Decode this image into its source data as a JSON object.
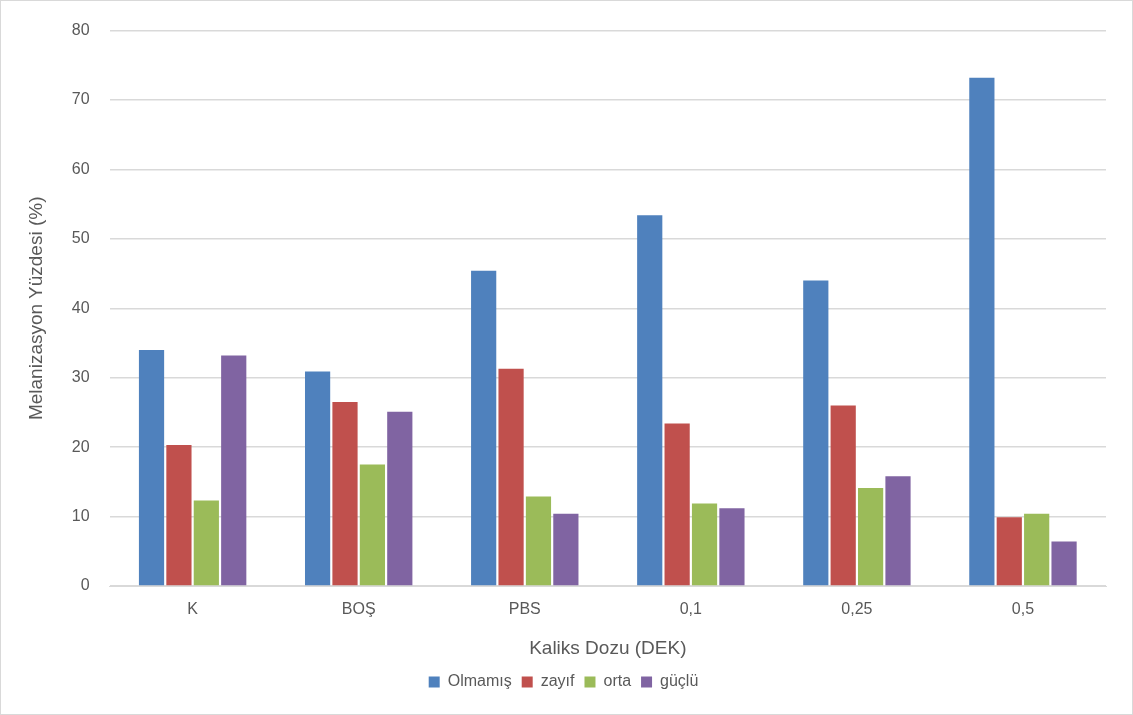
{
  "chart_data": {
    "type": "bar",
    "xlabel": "Kaliks Dozu (DEK)",
    "ylabel": "Melanizasyon Yüzdesi (%)",
    "categories": [
      "K",
      "BOŞ",
      "PBS",
      "0,1",
      "0,25",
      "0,5"
    ],
    "series": [
      {
        "name": "Olmamış",
        "color": "#4f81bd",
        "values": [
          34.0,
          30.9,
          45.4,
          53.4,
          44.0,
          73.2
        ]
      },
      {
        "name": "zayıf",
        "color": "#c0504d",
        "values": [
          20.3,
          26.5,
          31.3,
          23.4,
          26.0,
          9.9
        ]
      },
      {
        "name": "orta",
        "color": "#9bbb59",
        "values": [
          12.3,
          17.5,
          12.9,
          11.9,
          14.1,
          10.4
        ]
      },
      {
        "name": "güçlü",
        "color": "#8064a2",
        "values": [
          33.2,
          25.1,
          10.4,
          11.2,
          15.8,
          6.4
        ]
      }
    ],
    "ylim": [
      0,
      80
    ],
    "yticks": [
      0,
      10,
      20,
      30,
      40,
      50,
      60,
      70,
      80
    ],
    "grid": "y",
    "legend": "bottom"
  }
}
